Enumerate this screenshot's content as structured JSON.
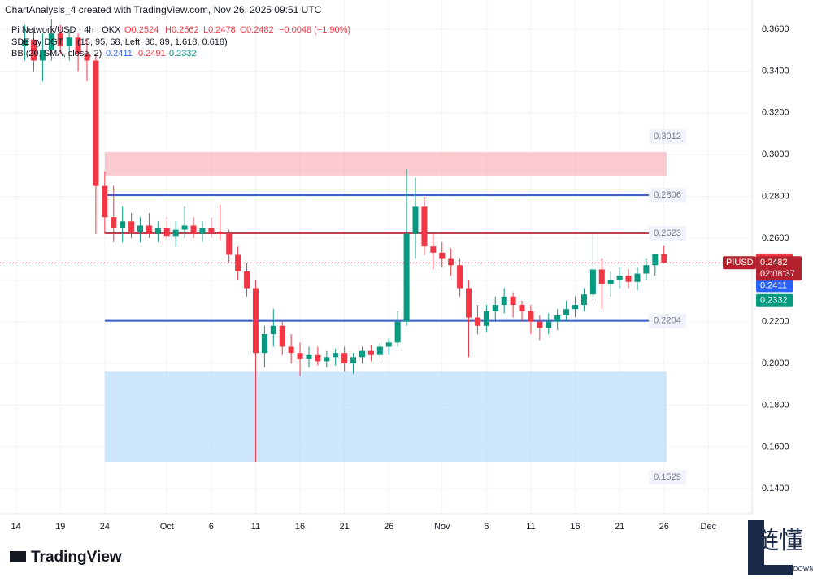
{
  "header": {
    "credit": "ChartAnalysis_4 created with TradingView.com, Nov 26, 2025 09:51 UTC",
    "symbol": "Pi Network/USD · 4h · OKX",
    "open": "O0.2524",
    "high": "H0.2562",
    "low": "L0.2478",
    "close": "C0.2482",
    "change": "−0.0048 (−1.90%)",
    "indicator1": "SDE by DGT",
    "indicator1_params": "(15, 95, 68, Left, 30, 89, 1.618, 0.618)",
    "indicator2": "BB (20, SMA, close, 2)",
    "bb_basis": "0.2411",
    "bb_upper": "0.2491",
    "bb_lower": "0.2332"
  },
  "brand": {
    "logo": "TradingView",
    "watermark": "链懂",
    "watermark_sub": "NEATDOWN.COM"
  },
  "chart_data": {
    "type": "candlestick",
    "symbol_tag": "PIUSD",
    "countdown": "02:08:37",
    "up_color": "#089981",
    "down_color": "#f23645",
    "xlim": [
      -2.8,
      81
    ],
    "ylim": [
      0.128,
      0.374
    ],
    "xticks": [
      {
        "value": -1,
        "label": "14"
      },
      {
        "value": 4,
        "label": "19"
      },
      {
        "value": 9,
        "label": "24"
      },
      {
        "value": 16,
        "label": "Oct"
      },
      {
        "value": 21,
        "label": "6"
      },
      {
        "value": 26,
        "label": "11"
      },
      {
        "value": 31,
        "label": "16"
      },
      {
        "value": 36,
        "label": "21"
      },
      {
        "value": 41,
        "label": "26"
      },
      {
        "value": 47,
        "label": "Nov"
      },
      {
        "value": 52,
        "label": "6"
      },
      {
        "value": 57,
        "label": "11"
      },
      {
        "value": 62,
        "label": "16"
      },
      {
        "value": 67,
        "label": "21"
      },
      {
        "value": 72,
        "label": "26"
      },
      {
        "value": 77,
        "label": "Dec"
      }
    ],
    "yticks": [
      {
        "value": 0.14,
        "label": "0.1400"
      },
      {
        "value": 0.16,
        "label": "0.1600"
      },
      {
        "value": 0.18,
        "label": "0.1800"
      },
      {
        "value": 0.2,
        "label": "0.2000"
      },
      {
        "value": 0.22,
        "label": "0.2200"
      },
      {
        "value": 0.24,
        "label": "0.2400"
      },
      {
        "value": 0.26,
        "label": "0.2600"
      },
      {
        "value": 0.28,
        "label": "0.2800"
      },
      {
        "value": 0.3,
        "label": "0.3000"
      },
      {
        "value": 0.32,
        "label": "0.3200"
      },
      {
        "value": 0.34,
        "label": "0.3400"
      },
      {
        "value": 0.36,
        "label": "0.3600"
      }
    ],
    "levels": [
      {
        "value": 0.2806,
        "label": "0.2806",
        "color": "#3c5fc8"
      },
      {
        "value": 0.2623,
        "label": "0.2623",
        "color": "#c04050"
      },
      {
        "value": 0.2204,
        "label": "0.2204",
        "color": "#3c5fc8"
      }
    ],
    "zones": [
      {
        "low": 0.29,
        "high": 0.3012,
        "label": "0.3012",
        "color": "#f7a1a8"
      },
      {
        "low": 0.1529,
        "high": 0.196,
        "label": "0.1529",
        "color": "#a8d4f5"
      }
    ],
    "price_tags": [
      {
        "value": 0.2491,
        "label": "0.2491",
        "color": "#f23645"
      },
      {
        "value": 0.2411,
        "label": "0.2411",
        "color": "#2962ff"
      },
      {
        "value": 0.2332,
        "label": "0.2332",
        "color": "#089981"
      }
    ],
    "last_price": {
      "value": 0.2482,
      "label": "0.2482"
    },
    "ohlc": [
      [
        0.352,
        0.362,
        0.345,
        0.355
      ],
      [
        0.355,
        0.36,
        0.34,
        0.345
      ],
      [
        0.345,
        0.358,
        0.335,
        0.35
      ],
      [
        0.35,
        0.365,
        0.345,
        0.358
      ],
      [
        0.358,
        0.362,
        0.348,
        0.352
      ],
      [
        0.352,
        0.36,
        0.345,
        0.356
      ],
      [
        0.356,
        0.358,
        0.34,
        0.348
      ],
      [
        0.348,
        0.355,
        0.335,
        0.345
      ],
      [
        0.345,
        0.348,
        0.262,
        0.285
      ],
      [
        0.285,
        0.292,
        0.262,
        0.27
      ],
      [
        0.27,
        0.285,
        0.258,
        0.265
      ],
      [
        0.265,
        0.275,
        0.258,
        0.268
      ],
      [
        0.268,
        0.272,
        0.26,
        0.263
      ],
      [
        0.263,
        0.27,
        0.258,
        0.266
      ],
      [
        0.266,
        0.272,
        0.26,
        0.262
      ],
      [
        0.262,
        0.268,
        0.258,
        0.265
      ],
      [
        0.265,
        0.27,
        0.259,
        0.261
      ],
      [
        0.261,
        0.268,
        0.256,
        0.264
      ],
      [
        0.264,
        0.275,
        0.26,
        0.266
      ],
      [
        0.266,
        0.27,
        0.26,
        0.262
      ],
      [
        0.262,
        0.268,
        0.258,
        0.265
      ],
      [
        0.265,
        0.27,
        0.26,
        0.263
      ],
      [
        0.263,
        0.276,
        0.259,
        0.262
      ],
      [
        0.262,
        0.264,
        0.248,
        0.252
      ],
      [
        0.252,
        0.256,
        0.24,
        0.244
      ],
      [
        0.244,
        0.248,
        0.232,
        0.236
      ],
      [
        0.236,
        0.24,
        0.153,
        0.205
      ],
      [
        0.205,
        0.218,
        0.198,
        0.214
      ],
      [
        0.214,
        0.226,
        0.208,
        0.218
      ],
      [
        0.218,
        0.22,
        0.204,
        0.208
      ],
      [
        0.208,
        0.214,
        0.2,
        0.205
      ],
      [
        0.205,
        0.21,
        0.194,
        0.202
      ],
      [
        0.202,
        0.208,
        0.198,
        0.204
      ],
      [
        0.204,
        0.208,
        0.199,
        0.201
      ],
      [
        0.201,
        0.206,
        0.198,
        0.203
      ],
      [
        0.203,
        0.207,
        0.199,
        0.205
      ],
      [
        0.205,
        0.208,
        0.196,
        0.2
      ],
      [
        0.2,
        0.205,
        0.195,
        0.203
      ],
      [
        0.203,
        0.208,
        0.2,
        0.206
      ],
      [
        0.206,
        0.209,
        0.201,
        0.204
      ],
      [
        0.204,
        0.21,
        0.202,
        0.208
      ],
      [
        0.208,
        0.212,
        0.204,
        0.21
      ],
      [
        0.21,
        0.225,
        0.208,
        0.22
      ],
      [
        0.22,
        0.293,
        0.218,
        0.262
      ],
      [
        0.262,
        0.289,
        0.25,
        0.275
      ],
      [
        0.275,
        0.28,
        0.252,
        0.256
      ],
      [
        0.256,
        0.262,
        0.245,
        0.253
      ],
      [
        0.253,
        0.258,
        0.246,
        0.25
      ],
      [
        0.25,
        0.255,
        0.242,
        0.247
      ],
      [
        0.247,
        0.25,
        0.232,
        0.236
      ],
      [
        0.236,
        0.24,
        0.203,
        0.222
      ],
      [
        0.222,
        0.228,
        0.214,
        0.218
      ],
      [
        0.218,
        0.228,
        0.215,
        0.225
      ],
      [
        0.225,
        0.232,
        0.22,
        0.228
      ],
      [
        0.228,
        0.236,
        0.224,
        0.232
      ],
      [
        0.232,
        0.234,
        0.222,
        0.228
      ],
      [
        0.228,
        0.23,
        0.22,
        0.225
      ],
      [
        0.225,
        0.228,
        0.214,
        0.22
      ],
      [
        0.22,
        0.223,
        0.211,
        0.217
      ],
      [
        0.217,
        0.224,
        0.214,
        0.22
      ],
      [
        0.22,
        0.226,
        0.216,
        0.223
      ],
      [
        0.223,
        0.23,
        0.22,
        0.226
      ],
      [
        0.226,
        0.232,
        0.222,
        0.228
      ],
      [
        0.228,
        0.236,
        0.225,
        0.233
      ],
      [
        0.233,
        0.262,
        0.23,
        0.245
      ],
      [
        0.245,
        0.25,
        0.226,
        0.238
      ],
      [
        0.238,
        0.244,
        0.232,
        0.24
      ],
      [
        0.24,
        0.246,
        0.236,
        0.242
      ],
      [
        0.242,
        0.245,
        0.236,
        0.239
      ],
      [
        0.239,
        0.246,
        0.235,
        0.243
      ],
      [
        0.243,
        0.25,
        0.24,
        0.247
      ],
      [
        0.247,
        0.252,
        0.242,
        0.2524
      ],
      [
        0.2524,
        0.2562,
        0.2478,
        0.2482
      ]
    ]
  }
}
